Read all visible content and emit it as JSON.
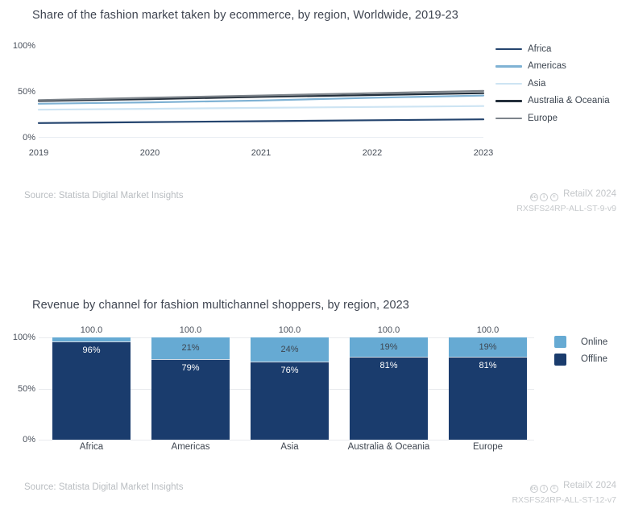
{
  "chart_data": [
    {
      "type": "line",
      "title": "Share of the fashion market taken by ecommerce, by region, Worldwide, 2019-23",
      "x": [
        2019,
        2020,
        2021,
        2022,
        2023
      ],
      "ylim": [
        0,
        100
      ],
      "yticks": [
        {
          "value": 0,
          "label": "0%"
        },
        {
          "value": 50,
          "label": "50%"
        },
        {
          "value": 100,
          "label": "100%"
        }
      ],
      "grid": "baseline-only",
      "legend_position": "right",
      "series": [
        {
          "name": "Africa",
          "color": "#24446e",
          "values": [
            16,
            17,
            18,
            19,
            20
          ]
        },
        {
          "name": "Americas",
          "color": "#7fb2d4",
          "values": [
            37,
            38.5,
            40.5,
            43.5,
            46
          ]
        },
        {
          "name": "Asia",
          "color": "#cde4f3",
          "values": [
            30.5,
            31.5,
            32.5,
            33.5,
            34.5
          ]
        },
        {
          "name": "Australia & Oceania",
          "color": "#232e3a",
          "values": [
            40,
            42,
            44.5,
            46.5,
            48.5
          ]
        },
        {
          "name": "Europe",
          "color": "#7d848b",
          "values": [
            41,
            43.5,
            46,
            48.5,
            51
          ]
        }
      ]
    },
    {
      "type": "bar",
      "stacked": true,
      "title": "Revenue by channel for fashion multichannel shoppers, by region, 2023",
      "categories": [
        "Africa",
        "Americas",
        "Asia",
        "Australia & Oceania",
        "Europe"
      ],
      "ylim": [
        0,
        100
      ],
      "yticks": [
        {
          "value": 0,
          "label": "0%"
        },
        {
          "value": 50,
          "label": "50%"
        },
        {
          "value": 100,
          "label": "100%"
        }
      ],
      "totals": [
        "100.0",
        "100.0",
        "100.0",
        "100.0",
        "100.0"
      ],
      "legend_position": "right",
      "series": [
        {
          "name": "Online",
          "color": "#66aad3",
          "values": [
            4,
            21,
            24,
            19,
            19
          ],
          "labels": [
            "",
            "21%",
            "24%",
            "19%",
            "19%"
          ],
          "label_color": "#3d4651",
          "label_style": "center"
        },
        {
          "name": "Offline",
          "color": "#1a3c6d",
          "values": [
            96,
            79,
            76,
            81,
            81
          ],
          "labels": [
            "96%",
            "79%",
            "76%",
            "81%",
            "81%"
          ],
          "label_color": "#ffffff",
          "label_style": "top"
        }
      ]
    }
  ],
  "footers": [
    {
      "source": "Source: Statista Digital Market Insights",
      "brand": "RetailX 2024",
      "code": "RXSFS24RP-ALL-ST-9-v9"
    },
    {
      "source": "Source: Statista Digital Market Insights",
      "brand": "RetailX 2024",
      "code": "RXSFS24RP-ALL-ST-12-v7"
    }
  ],
  "cc_icons": [
    {
      "name": "cc-icon",
      "glyph": "cc"
    },
    {
      "name": "cc-by-icon",
      "glyph": "i"
    },
    {
      "name": "cc-nd-icon",
      "glyph": "="
    }
  ]
}
